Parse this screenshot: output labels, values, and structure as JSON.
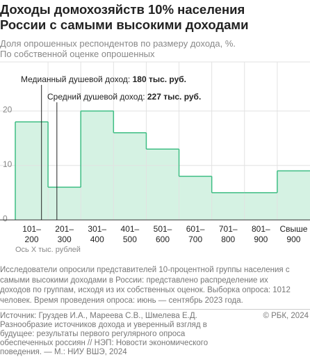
{
  "title": "Доходы домохозяйств 10% населения России с самыми высокими доходами",
  "subtitle": [
    "Доля опрошенных респондентов по размеру дохода, %.",
    "По собственной оценке опрошенных"
  ],
  "chart_data": {
    "type": "step",
    "categories": [
      "101–200",
      "201–300",
      "301–400",
      "401–500",
      "501–600",
      "601–700",
      "701–800",
      "801–900",
      "Свыше 900"
    ],
    "values": [
      18,
      6,
      20,
      16,
      13,
      8,
      5,
      5,
      9
    ],
    "color": "#3dbd83",
    "fill_color": "#d5f2e3",
    "ylim": [
      0,
      29
    ],
    "yticks": [
      0,
      10,
      20
    ],
    "xlim": [
      100,
      1000
    ],
    "grid": true,
    "x_label": "Ось X тыс. рублей",
    "annotations": [
      {
        "label": "Медианный душевой доход:",
        "value": 180,
        "value_label": "180 тыс. руб."
      },
      {
        "label": "Средний душевой доход:",
        "value": 227,
        "value_label": "227 тыс. руб."
      }
    ]
  },
  "footnote": "Исследователи опросили представителей 10-процентной группы населения с самыми высокими доходами в России: представлено распределение их доходов по группам, исходя из их собственных оценок. Выборка опроса: 1012 человек. Время проведения опроса: июнь — сентябрь 2023 года.",
  "source": "Источник: Груздев И.А., Мареева С.В., Шмелева Е.Д. Разнообразие источников дохода и уверенный взгляд в будущее: результаты первого регулярного опроса обеспеченных россиян // НЭП: Новости экономического поведения. — М.: НИУ ВШЭ, 2024",
  "copyright": "© РБК, 2024"
}
